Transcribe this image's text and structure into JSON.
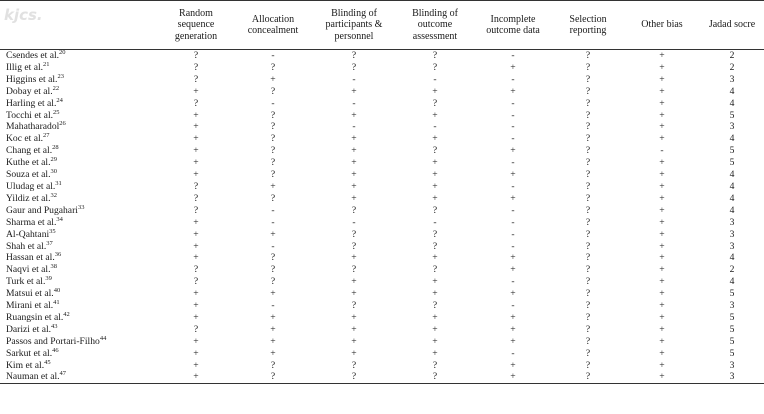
{
  "headers": [
    "",
    "Random sequence generation",
    "Allocation concealment",
    "Blinding of participants & personnel",
    "Blinding of outcome assessment",
    "Incomplete outcome data",
    "Selection reporting",
    "Other bias",
    "Jadad socre"
  ],
  "rows": [
    {
      "study": "Csendes et al.",
      "ref": "20",
      "v": [
        "?",
        "-",
        "?",
        "?",
        "-",
        "?",
        "+",
        "2"
      ]
    },
    {
      "study": "Illig et al.",
      "ref": "21",
      "v": [
        "?",
        "?",
        "?",
        "?",
        "+",
        "?",
        "+",
        "2"
      ]
    },
    {
      "study": "Higgins et al.",
      "ref": "23",
      "v": [
        "?",
        "+",
        "-",
        "-",
        "-",
        "?",
        "+",
        "3"
      ]
    },
    {
      "study": "Dobay et al.",
      "ref": "22",
      "v": [
        "+",
        "?",
        "+",
        "+",
        "+",
        "?",
        "+",
        "4"
      ]
    },
    {
      "study": "Harling et al.",
      "ref": "24",
      "v": [
        "?",
        "-",
        "-",
        "?",
        "-",
        "?",
        "+",
        "4"
      ]
    },
    {
      "study": "Tocchi et al.",
      "ref": "25",
      "v": [
        "+",
        "?",
        "+",
        "+",
        "-",
        "?",
        "+",
        "5"
      ]
    },
    {
      "study": "Mahatharadol",
      "ref": "26",
      "v": [
        "+",
        "?",
        "-",
        "-",
        "-",
        "?",
        "+",
        "3"
      ]
    },
    {
      "study": "Koc et al.",
      "ref": "27",
      "v": [
        "+",
        "?",
        "+",
        "+",
        "-",
        "?",
        "+",
        "4"
      ]
    },
    {
      "study": "Chang et al.",
      "ref": "28",
      "v": [
        "+",
        "?",
        "+",
        "?",
        "+",
        "?",
        "-",
        "5"
      ]
    },
    {
      "study": "Kuthe et al.",
      "ref": "29",
      "v": [
        "+",
        "?",
        "+",
        "+",
        "-",
        "?",
        "+",
        "5"
      ]
    },
    {
      "study": "Souza et al.",
      "ref": "30",
      "v": [
        "+",
        "?",
        "+",
        "+",
        "+",
        "?",
        "+",
        "4"
      ]
    },
    {
      "study": "Uludag et al.",
      "ref": "31",
      "v": [
        "?",
        "+",
        "+",
        "+",
        "-",
        "?",
        "+",
        "4"
      ]
    },
    {
      "study": "Yildiz et al.",
      "ref": "32",
      "v": [
        "?",
        "?",
        "+",
        "+",
        "+",
        "?",
        "+",
        "4"
      ]
    },
    {
      "study": "Gaur and Pugahari",
      "ref": "33",
      "v": [
        "?",
        "-",
        "?",
        "?",
        "-",
        "?",
        "+",
        "4"
      ]
    },
    {
      "study": "Sharma et al.",
      "ref": "34",
      "v": [
        "+",
        "-",
        "-",
        "-",
        "-",
        "?",
        "+",
        "3"
      ]
    },
    {
      "study": "Al-Qahtani",
      "ref": "35",
      "v": [
        "+",
        "+",
        "?",
        "?",
        "-",
        "?",
        "+",
        "3"
      ]
    },
    {
      "study": "Shah et al.",
      "ref": "37",
      "v": [
        "+",
        "-",
        "?",
        "?",
        "-",
        "?",
        "+",
        "3"
      ]
    },
    {
      "study": "Hassan et al.",
      "ref": "36",
      "v": [
        "+",
        "?",
        "+",
        "+",
        "+",
        "?",
        "+",
        "4"
      ]
    },
    {
      "study": "Naqvi et al.",
      "ref": "38",
      "v": [
        "?",
        "?",
        "?",
        "?",
        "+",
        "?",
        "+",
        "2"
      ]
    },
    {
      "study": "Turk et al.",
      "ref": "39",
      "v": [
        "?",
        "?",
        "+",
        "+",
        "-",
        "?",
        "+",
        "4"
      ]
    },
    {
      "study": "Matsui et al.",
      "ref": "40",
      "v": [
        "+",
        "+",
        "+",
        "+",
        "+",
        "?",
        "+",
        "5"
      ]
    },
    {
      "study": "Mirani et al.",
      "ref": "41",
      "v": [
        "+",
        "-",
        "?",
        "?",
        "-",
        "?",
        "+",
        "3"
      ]
    },
    {
      "study": "Ruangsin et al.",
      "ref": "42",
      "v": [
        "+",
        "+",
        "+",
        "+",
        "+",
        "?",
        "+",
        "5"
      ]
    },
    {
      "study": "Darizi et al.",
      "ref": "43",
      "v": [
        "?",
        "+",
        "+",
        "+",
        "+",
        "?",
        "+",
        "5"
      ]
    },
    {
      "study": "Passos and Portari-Filho",
      "ref": "44",
      "v": [
        "+",
        "+",
        "+",
        "+",
        "+",
        "?",
        "+",
        "5"
      ]
    },
    {
      "study": "Sarkut et al.",
      "ref": "46",
      "v": [
        "+",
        "+",
        "+",
        "+",
        "-",
        "?",
        "+",
        "5"
      ]
    },
    {
      "study": "Kim et al.",
      "ref": "45",
      "v": [
        "+",
        "?",
        "?",
        "?",
        "+",
        "?",
        "+",
        "3"
      ]
    },
    {
      "study": "Nauman et al.",
      "ref": "47",
      "v": [
        "+",
        "?",
        "?",
        "?",
        "+",
        "?",
        "+",
        "3"
      ]
    }
  ]
}
